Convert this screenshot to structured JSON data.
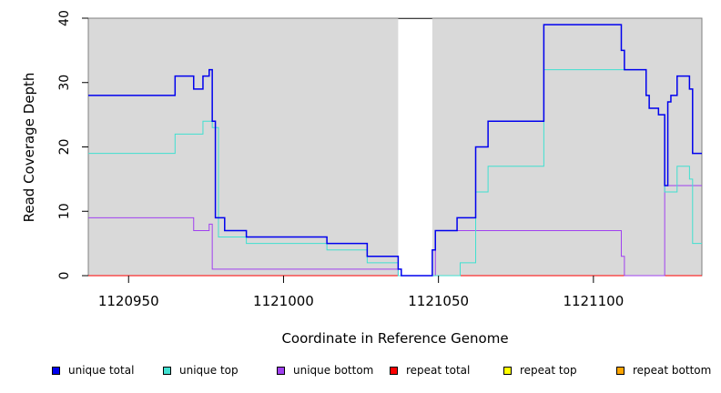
{
  "chart_data": {
    "type": "line",
    "title": "",
    "xlabel": "Coordinate in Reference Genome",
    "ylabel": "Read Coverage Depth",
    "xlim": [
      1120937,
      1121135
    ],
    "ylim": [
      0,
      40
    ],
    "x_ticks": [
      1120950,
      1121000,
      1121050,
      1121100
    ],
    "x_tick_labels": [
      "1120950",
      "1121000",
      "1121050",
      "1121100"
    ],
    "y_ticks": [
      0,
      10,
      20,
      30,
      40
    ],
    "y_tick_labels": [
      "0",
      "10",
      "20",
      "30",
      "40"
    ],
    "background_color": "#d9d9d9",
    "gap_region": [
      1121037,
      1121048
    ],
    "grid": false,
    "legend_position": "bottom",
    "series": [
      {
        "name": "unique total",
        "color": "#0000ee",
        "steps": [
          [
            1120937,
            28
          ],
          [
            1120965,
            31
          ],
          [
            1120971,
            29
          ],
          [
            1120974,
            31
          ],
          [
            1120976,
            32
          ],
          [
            1120977,
            24
          ],
          [
            1120978,
            9
          ],
          [
            1120981,
            7
          ],
          [
            1120988,
            6
          ],
          [
            1121014,
            5
          ],
          [
            1121027,
            3
          ],
          [
            1121037,
            1
          ],
          [
            1121038,
            0
          ],
          [
            1121048,
            4
          ],
          [
            1121049,
            7
          ],
          [
            1121056,
            9
          ],
          [
            1121062,
            20
          ],
          [
            1121066,
            24
          ],
          [
            1121084,
            39
          ],
          [
            1121109,
            35
          ],
          [
            1121110,
            32
          ],
          [
            1121117,
            28
          ],
          [
            1121118,
            26
          ],
          [
            1121121,
            25
          ],
          [
            1121123,
            14
          ],
          [
            1121124,
            27
          ],
          [
            1121125,
            28
          ],
          [
            1121127,
            31
          ],
          [
            1121131,
            29
          ],
          [
            1121132,
            19
          ]
        ],
        "x_end": 1121135
      },
      {
        "name": "unique top",
        "color": "#40e0d0",
        "steps": [
          [
            1120937,
            19
          ],
          [
            1120965,
            22
          ],
          [
            1120974,
            24
          ],
          [
            1120977,
            23
          ],
          [
            1120979,
            6
          ],
          [
            1120988,
            5
          ],
          [
            1121014,
            4
          ],
          [
            1121027,
            2
          ],
          [
            1121037,
            0
          ],
          [
            1121057,
            2
          ],
          [
            1121062,
            13
          ],
          [
            1121066,
            17
          ],
          [
            1121084,
            32
          ],
          [
            1121117,
            28
          ],
          [
            1121118,
            26
          ],
          [
            1121121,
            25
          ],
          [
            1121123,
            13
          ],
          [
            1121127,
            17
          ],
          [
            1121131,
            15
          ],
          [
            1121132,
            5
          ]
        ],
        "x_end": 1121135
      },
      {
        "name": "unique bottom",
        "color": "#a040f0",
        "steps": [
          [
            1120937,
            9
          ],
          [
            1120971,
            7
          ],
          [
            1120976,
            8
          ],
          [
            1120977,
            1
          ],
          [
            1121037,
            0
          ],
          [
            1121049,
            7
          ],
          [
            1121109,
            3
          ],
          [
            1121110,
            0
          ],
          [
            1121123,
            14
          ]
        ],
        "x_end": 1121135
      },
      {
        "name": "repeat total",
        "color": "#ff0000",
        "steps": [
          [
            1120937,
            0
          ]
        ],
        "x_end": 1121135
      },
      {
        "name": "repeat top",
        "color": "#ffff00",
        "steps": [
          [
            1120937,
            0
          ]
        ],
        "x_end": 1121135
      },
      {
        "name": "repeat bottom",
        "color": "#ffa500",
        "steps": [
          [
            1120937,
            0
          ]
        ],
        "x_end": 1121135
      }
    ]
  },
  "legend": [
    {
      "label": "unique total",
      "color": "#0000ee"
    },
    {
      "label": "unique top",
      "color": "#40e0d0"
    },
    {
      "label": "unique bottom",
      "color": "#a040f0"
    },
    {
      "label": "repeat total",
      "color": "#ff0000"
    },
    {
      "label": "repeat top",
      "color": "#ffff00"
    },
    {
      "label": "repeat bottom",
      "color": "#ffa500"
    }
  ]
}
